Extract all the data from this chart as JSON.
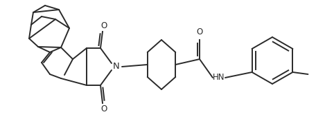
{
  "bg_color": "#ffffff",
  "line_color": "#2a2a2a",
  "line_width": 1.4,
  "font_size": 8.5,
  "figsize": [
    4.69,
    1.76
  ],
  "dpi": 100,
  "xlim": [
    0,
    469
  ],
  "ylim": [
    0,
    176
  ]
}
